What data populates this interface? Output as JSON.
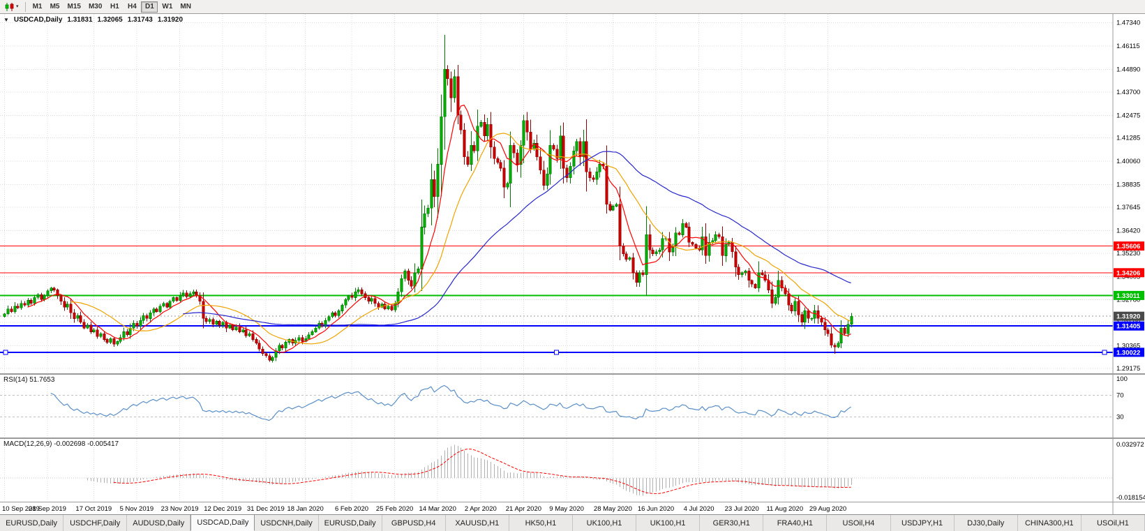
{
  "toolbar": {
    "chart_type_label": "Candlesticks",
    "timeframes": [
      "M1",
      "M5",
      "M15",
      "M30",
      "H1",
      "H4",
      "D1",
      "W1",
      "MN"
    ],
    "active_timeframe": "D1"
  },
  "chart": {
    "symbol_label": "USDCAD,Daily",
    "ohlc": {
      "open": "1.31831",
      "high": "1.32065",
      "low": "1.31743",
      "close": "1.31920"
    },
    "price_axis_labels": [
      "1.47340",
      "1.46115",
      "1.44890",
      "1.43700",
      "1.42475",
      "1.41285",
      "1.40060",
      "1.38835",
      "1.37645",
      "1.36420",
      "1.35230",
      "1.34005",
      "1.32780",
      "1.31590",
      "1.30365",
      "1.29175"
    ],
    "hlines": [
      {
        "price": 1.35606,
        "label": "1.35606",
        "color": "#FF0000",
        "width": 1,
        "selected": false
      },
      {
        "price": 1.34206,
        "label": "1.34206",
        "color": "#FF0000",
        "width": 1,
        "selected": false
      },
      {
        "price": 1.33011,
        "label": "1.33011",
        "color": "#00BE00",
        "width": 2,
        "selected": false
      },
      {
        "price": 1.31405,
        "label": "1.31405",
        "color": "#0000FF",
        "width": 2,
        "selected": false
      },
      {
        "price": 1.30022,
        "label": "1.30022",
        "color": "#0000FF",
        "width": 2,
        "selected": true
      }
    ],
    "current_price": {
      "value": 1.3192,
      "label": "1.31920",
      "badge_color": "#4A4A4A"
    },
    "date_labels": [
      {
        "text": "10 Sep 2019",
        "index": 0
      },
      {
        "text": "28 Sep 2019",
        "index": 13
      },
      {
        "text": "17 Oct 2019",
        "index": 27
      },
      {
        "text": "5 Nov 2019",
        "index": 40
      },
      {
        "text": "23 Nov 2019",
        "index": 53
      },
      {
        "text": "12 Dec 2019",
        "index": 66
      },
      {
        "text": "31 Dec 2019",
        "index": 79
      },
      {
        "text": "18 Jan 2020",
        "index": 91
      },
      {
        "text": "6 Feb 2020",
        "index": 105
      },
      {
        "text": "25 Feb 2020",
        "index": 118
      },
      {
        "text": "14 Mar 2020",
        "index": 131
      },
      {
        "text": "2 Apr 2020",
        "index": 144
      },
      {
        "text": "21 Apr 2020",
        "index": 157
      },
      {
        "text": "9 May 2020",
        "index": 170
      },
      {
        "text": "28 May 2020",
        "index": 184
      },
      {
        "text": "16 Jun 2020",
        "index": 197
      },
      {
        "text": "4 Jul 2020",
        "index": 210
      },
      {
        "text": "23 Jul 2020",
        "index": 223
      },
      {
        "text": "11 Aug 2020",
        "index": 236
      },
      {
        "text": "29 Aug 2020",
        "index": 249
      }
    ],
    "colors": {
      "bull": "#00C000",
      "bull_edge": "#007800",
      "bear": "#E00000",
      "bear_edge": "#8F0000",
      "grid": "#DCDCDC",
      "rsi": "#5A8FC8",
      "macd_hist": "#B0B0B0",
      "macd_signal": "#FF0000"
    }
  },
  "chart_data": {
    "type": "candlestick",
    "symbol": "USDCAD",
    "timeframe": "Daily",
    "x_range": [
      "10 Sep 2019",
      "8 Sep 2020"
    ],
    "price_range": [
      1.2892,
      1.478
    ],
    "closes": [
      1.3205,
      1.323,
      1.3215,
      1.3245,
      1.3235,
      1.326,
      1.325,
      1.3275,
      1.326,
      1.329,
      1.3305,
      1.328,
      1.33,
      1.3325,
      1.334,
      1.333,
      1.33,
      1.327,
      1.324,
      1.3255,
      1.321,
      1.318,
      1.3195,
      1.316,
      1.313,
      1.3145,
      1.311,
      1.312,
      1.3085,
      1.31,
      1.307,
      1.3055,
      1.3075,
      1.3045,
      1.306,
      1.308,
      1.311,
      1.3095,
      1.313,
      1.3155,
      1.314,
      1.317,
      1.3195,
      1.318,
      1.321,
      1.323,
      1.3215,
      1.3245,
      1.326,
      1.324,
      1.327,
      1.329,
      1.3275,
      1.33,
      1.3315,
      1.3295,
      1.331,
      1.332,
      1.33,
      1.327,
      1.318,
      1.3165,
      1.3175,
      1.315,
      1.3165,
      1.3145,
      1.316,
      1.313,
      1.3145,
      1.312,
      1.3135,
      1.311,
      1.312,
      1.309,
      1.31,
      1.307,
      1.305,
      1.302,
      1.2995,
      1.2985,
      1.296,
      1.2975,
      1.301,
      1.304,
      1.3025,
      1.3055,
      1.307,
      1.305,
      1.3065,
      1.308,
      1.306,
      1.3075,
      1.3095,
      1.311,
      1.313,
      1.3155,
      1.314,
      1.317,
      1.319,
      1.321,
      1.3195,
      1.322,
      1.325,
      1.328,
      1.33,
      1.329,
      1.332,
      1.333,
      1.331,
      1.329,
      1.327,
      1.3285,
      1.326,
      1.324,
      1.3255,
      1.323,
      1.3245,
      1.3225,
      1.326,
      1.332,
      1.339,
      1.343,
      1.338,
      1.335,
      1.342,
      1.344,
      1.366,
      1.373,
      1.376,
      1.391,
      1.382,
      1.399,
      1.424,
      1.449,
      1.444,
      1.434,
      1.445,
      1.425,
      1.417,
      1.403,
      1.399,
      1.409,
      1.406,
      1.419,
      1.421,
      1.414,
      1.42,
      1.408,
      1.402,
      1.4,
      1.397,
      1.387,
      1.389,
      1.409,
      1.405,
      1.399,
      1.409,
      1.422,
      1.416,
      1.407,
      1.41,
      1.403,
      1.396,
      1.388,
      1.394,
      1.409,
      1.407,
      1.402,
      1.414,
      1.397,
      1.392,
      1.398,
      1.406,
      1.411,
      1.403,
      1.411,
      1.395,
      1.392,
      1.391,
      1.395,
      1.399,
      1.398,
      1.378,
      1.375,
      1.377,
      1.378,
      1.356,
      1.352,
      1.349,
      1.35,
      1.342,
      1.337,
      1.342,
      1.341,
      1.362,
      1.354,
      1.352,
      1.353,
      1.354,
      1.36,
      1.36,
      1.353,
      1.356,
      1.363,
      1.362,
      1.368,
      1.366,
      1.358,
      1.357,
      1.355,
      1.354,
      1.361,
      1.351,
      1.358,
      1.359,
      1.362,
      1.361,
      1.351,
      1.357,
      1.358,
      1.353,
      1.345,
      1.341,
      1.342,
      1.343,
      1.338,
      1.336,
      1.334,
      1.342,
      1.341,
      1.338,
      1.333,
      1.326,
      1.329,
      1.338,
      1.334,
      1.331,
      1.325,
      1.322,
      1.327,
      1.32,
      1.316,
      1.322,
      1.318,
      1.318,
      1.322,
      1.318,
      1.316,
      1.312,
      1.31,
      1.304,
      1.303,
      1.305,
      1.313,
      1.31,
      1.315,
      1.3192
    ],
    "wick_overrides": [
      {
        "index": 133,
        "high": 1.46692
      },
      {
        "index": 80,
        "low": 1.29518
      },
      {
        "index": 251,
        "low": 1.2994
      }
    ],
    "indicators": {
      "moving_averages": [
        {
          "period": 8,
          "color": "#FF0000"
        },
        {
          "period": 21,
          "color": "#EFA300"
        },
        {
          "period": 55,
          "color": "#2828CC"
        }
      ],
      "rsi": {
        "label": "RSI(14) 51.7653",
        "period": 14,
        "value": 51.7653,
        "levels": [
          "100",
          "70",
          "30"
        ],
        "level_values": [
          100,
          70,
          30
        ]
      },
      "macd": {
        "label": "MACD(12,26,9) -0.002698 -0.005417",
        "fast": 12,
        "slow": 26,
        "signal_period": 9,
        "value": -0.002698,
        "signal_value": -0.005417,
        "axis_max_label": "0.032972",
        "axis_min_label": "-0.018154"
      }
    }
  },
  "bottom_tabs": {
    "active_index": 3,
    "tabs": [
      "EURUSD,Daily",
      "USDCHF,Daily",
      "AUDUSD,Daily",
      "USDCAD,Daily",
      "USDCNH,Daily",
      "EURUSD,Daily",
      "GBPUSD,H4",
      "XAUUSD,H1",
      "HK50,H1",
      "UK100,H1",
      "UK100,H1",
      "GER30,H1",
      "FRA40,H1",
      "USOil,H4",
      "USDJPY,H1",
      "DJ30,Daily",
      "CHINA300,H1",
      "USOil,H1"
    ]
  }
}
